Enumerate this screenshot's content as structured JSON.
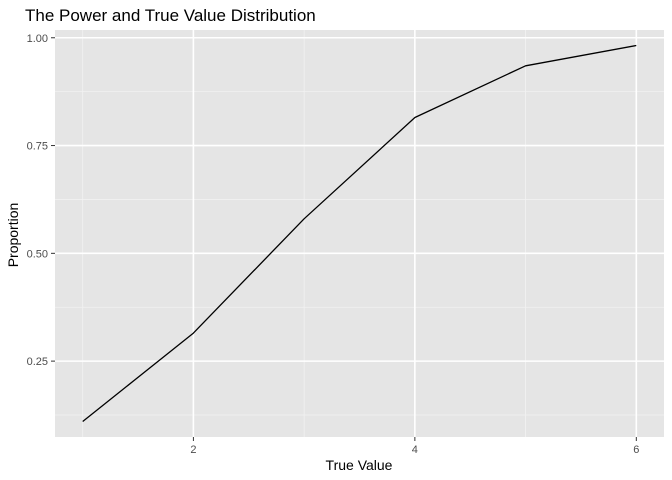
{
  "chart_data": {
    "type": "line",
    "title": "The Power and True Value Distribution",
    "xlabel": "True Value",
    "ylabel": "Proportion",
    "x": [
      1,
      2,
      3,
      4,
      5,
      6
    ],
    "series": [
      {
        "values": [
          0.11,
          0.315,
          0.58,
          0.815,
          0.935,
          0.982
        ]
      }
    ],
    "xlim": [
      0.75,
      6.25
    ],
    "ylim": [
      0.074,
      1.018
    ],
    "x_ticks": [
      2,
      4,
      6
    ],
    "x_tick_labels": [
      "2",
      "4",
      "6"
    ],
    "x_minor_ticks": [
      1,
      3,
      5
    ],
    "y_ticks": [
      0.25,
      0.5,
      0.75,
      1.0
    ],
    "y_tick_labels": [
      "0.25",
      "0.50",
      "0.75",
      "1.00"
    ],
    "y_minor_ticks": [
      0.125,
      0.375,
      0.625,
      0.875
    ],
    "grid": true,
    "legend": "none",
    "colors": {
      "panel_background": "#e5e5e5",
      "grid_major": "#ffffff",
      "grid_minor": "#f2f2f2",
      "line": "#000000",
      "tick": "#333333"
    }
  }
}
